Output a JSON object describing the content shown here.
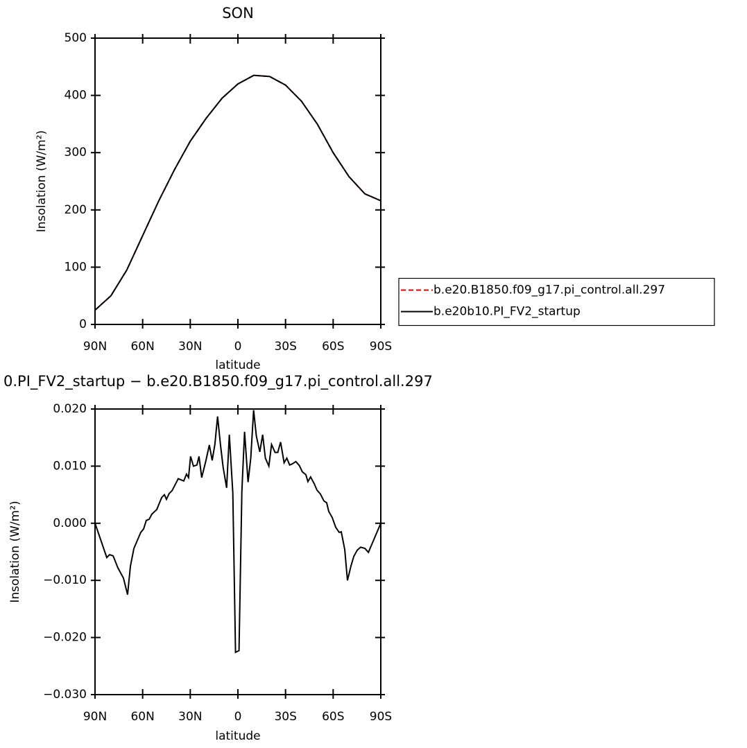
{
  "chart_data": [
    {
      "type": "line",
      "title": "SON",
      "xlabel": "latitude",
      "ylabel": "Insolation (W/m²)",
      "x": [
        90,
        80,
        70,
        60,
        50,
        40,
        30,
        20,
        10,
        0,
        -10,
        -20,
        -30,
        -40,
        -50,
        -60,
        -70,
        -80,
        -90
      ],
      "series": [
        {
          "name": "b.e20.B1850.f09_g17.pi_control.all.297",
          "color": "#e00000",
          "linestyle": "dashed",
          "values": [
            25,
            50,
            95,
            155,
            215,
            270,
            320,
            360,
            395,
            420,
            435,
            433,
            418,
            390,
            350,
            300,
            258,
            228,
            216
          ]
        },
        {
          "name": "b.e20b10.PI_FV2_startup",
          "color": "#000000",
          "linestyle": "solid",
          "values": [
            25,
            50,
            95,
            155,
            215,
            270,
            320,
            360,
            395,
            420,
            435,
            433,
            418,
            390,
            350,
            300,
            258,
            228,
            216
          ]
        }
      ],
      "xlim": [
        90,
        -90
      ],
      "xticks": [
        {
          "value": 90,
          "label": "90N"
        },
        {
          "value": 60,
          "label": "60N"
        },
        {
          "value": 30,
          "label": "30N"
        },
        0,
        {
          "value": -30,
          "label": "30S"
        },
        {
          "value": -60,
          "label": "60S"
        },
        {
          "value": -90,
          "label": "90S"
        }
      ],
      "ylim": [
        0,
        500
      ],
      "yticks": [
        0,
        100,
        200,
        300,
        400,
        500
      ],
      "legend": "right"
    },
    {
      "type": "line",
      "title": "0.PI_FV2_startup − b.e20.B1850.f09_g17.pi_control.all.297",
      "xlabel": "latitude",
      "ylabel": "Insolation (W/m²)",
      "x": [
        90,
        82.6,
        80.8,
        78.6,
        75.6,
        72.1,
        69.5,
        67.7,
        65.5,
        61.2,
        59.4,
        57.7,
        55.9,
        54.2,
        51.1,
        49.8,
        48.0,
        46.3,
        45.0,
        43.3,
        41.5,
        39.8,
        37.6,
        34.1,
        32.4,
        31.1,
        29.8,
        28.0,
        25.8,
        24.5,
        22.8,
        20.2,
        18.0,
        16.2,
        14.5,
        12.8,
        11.0,
        9.3,
        7.1,
        5.4,
        3.2,
        1.5,
        -0.7,
        -2.5,
        -4.2,
        -6.4,
        -8.1,
        -9.9,
        -11.6,
        -13.8,
        -15.6,
        -17.3,
        -19.5,
        -21.2,
        -23.4,
        -25.1,
        -26.9,
        -29.1,
        -30.8,
        -32.6,
        -34.3,
        -36.5,
        -38.7,
        -40.6,
        -42.8,
        -44.1,
        -45.8,
        -48.1,
        -49.8,
        -52.0,
        -54.2,
        -55.9,
        -57.2,
        -59.4,
        -61.6,
        -63.8,
        -65.1,
        -67.3,
        -69.0,
        -71.2,
        -73.0,
        -75.2,
        -77.3,
        -80.0,
        -82.2,
        -90
      ],
      "series": [
        {
          "color": "#000000",
          "linestyle": "solid",
          "values": [
            0,
            -0.006,
            -0.0055,
            -0.0057,
            -0.0078,
            -0.0096,
            -0.0125,
            -0.0075,
            -0.0044,
            -0.0016,
            -0.001,
            0.0005,
            0.0007,
            0.0016,
            0.0024,
            0.0033,
            0.0045,
            0.005,
            0.0042,
            0.0052,
            0.0057,
            0.0066,
            0.0078,
            0.0074,
            0.0086,
            0.008,
            0.0117,
            0.01,
            0.0102,
            0.0117,
            0.008,
            0.0109,
            0.0137,
            0.011,
            0.0138,
            0.0187,
            0.0138,
            0.0098,
            0.0062,
            0.0155,
            0.0053,
            -0.0226,
            -0.0223,
            0.0056,
            0.016,
            0.0072,
            0.0114,
            0.0198,
            0.0153,
            0.0125,
            0.0155,
            0.0114,
            0.01,
            0.0138,
            0.0124,
            0.0124,
            0.0142,
            0.0106,
            0.0114,
            0.0102,
            0.0104,
            0.0108,
            0.0101,
            0.009,
            0.0085,
            0.0073,
            0.0081,
            0.0069,
            0.0058,
            0.0051,
            0.0039,
            0.0036,
            0.0021,
            0.001,
            -0.0007,
            -0.0016,
            -0.0015,
            -0.0046,
            -0.01,
            -0.0075,
            -0.0058,
            -0.0047,
            -0.0042,
            -0.0044,
            -0.0051,
            0
          ]
        }
      ],
      "xlim": [
        90,
        -90
      ],
      "xticks": [
        {
          "value": 90,
          "label": "90N"
        },
        {
          "value": 60,
          "label": "60N"
        },
        {
          "value": 30,
          "label": "30N"
        },
        0,
        {
          "value": -30,
          "label": "30S"
        },
        {
          "value": -60,
          "label": "60S"
        },
        {
          "value": -90,
          "label": "90S"
        }
      ],
      "ylim": [
        -0.03,
        0.02
      ],
      "yticks": [
        {
          "value": -0.03,
          "label": "−0.030"
        },
        {
          "value": -0.02,
          "label": "−0.020"
        },
        {
          "value": -0.01,
          "label": "−0.010"
        },
        {
          "value": 0,
          "label": "0.000"
        },
        {
          "value": 0.01,
          "label": "0.010"
        },
        {
          "value": 0.02,
          "label": "0.020"
        }
      ]
    }
  ]
}
